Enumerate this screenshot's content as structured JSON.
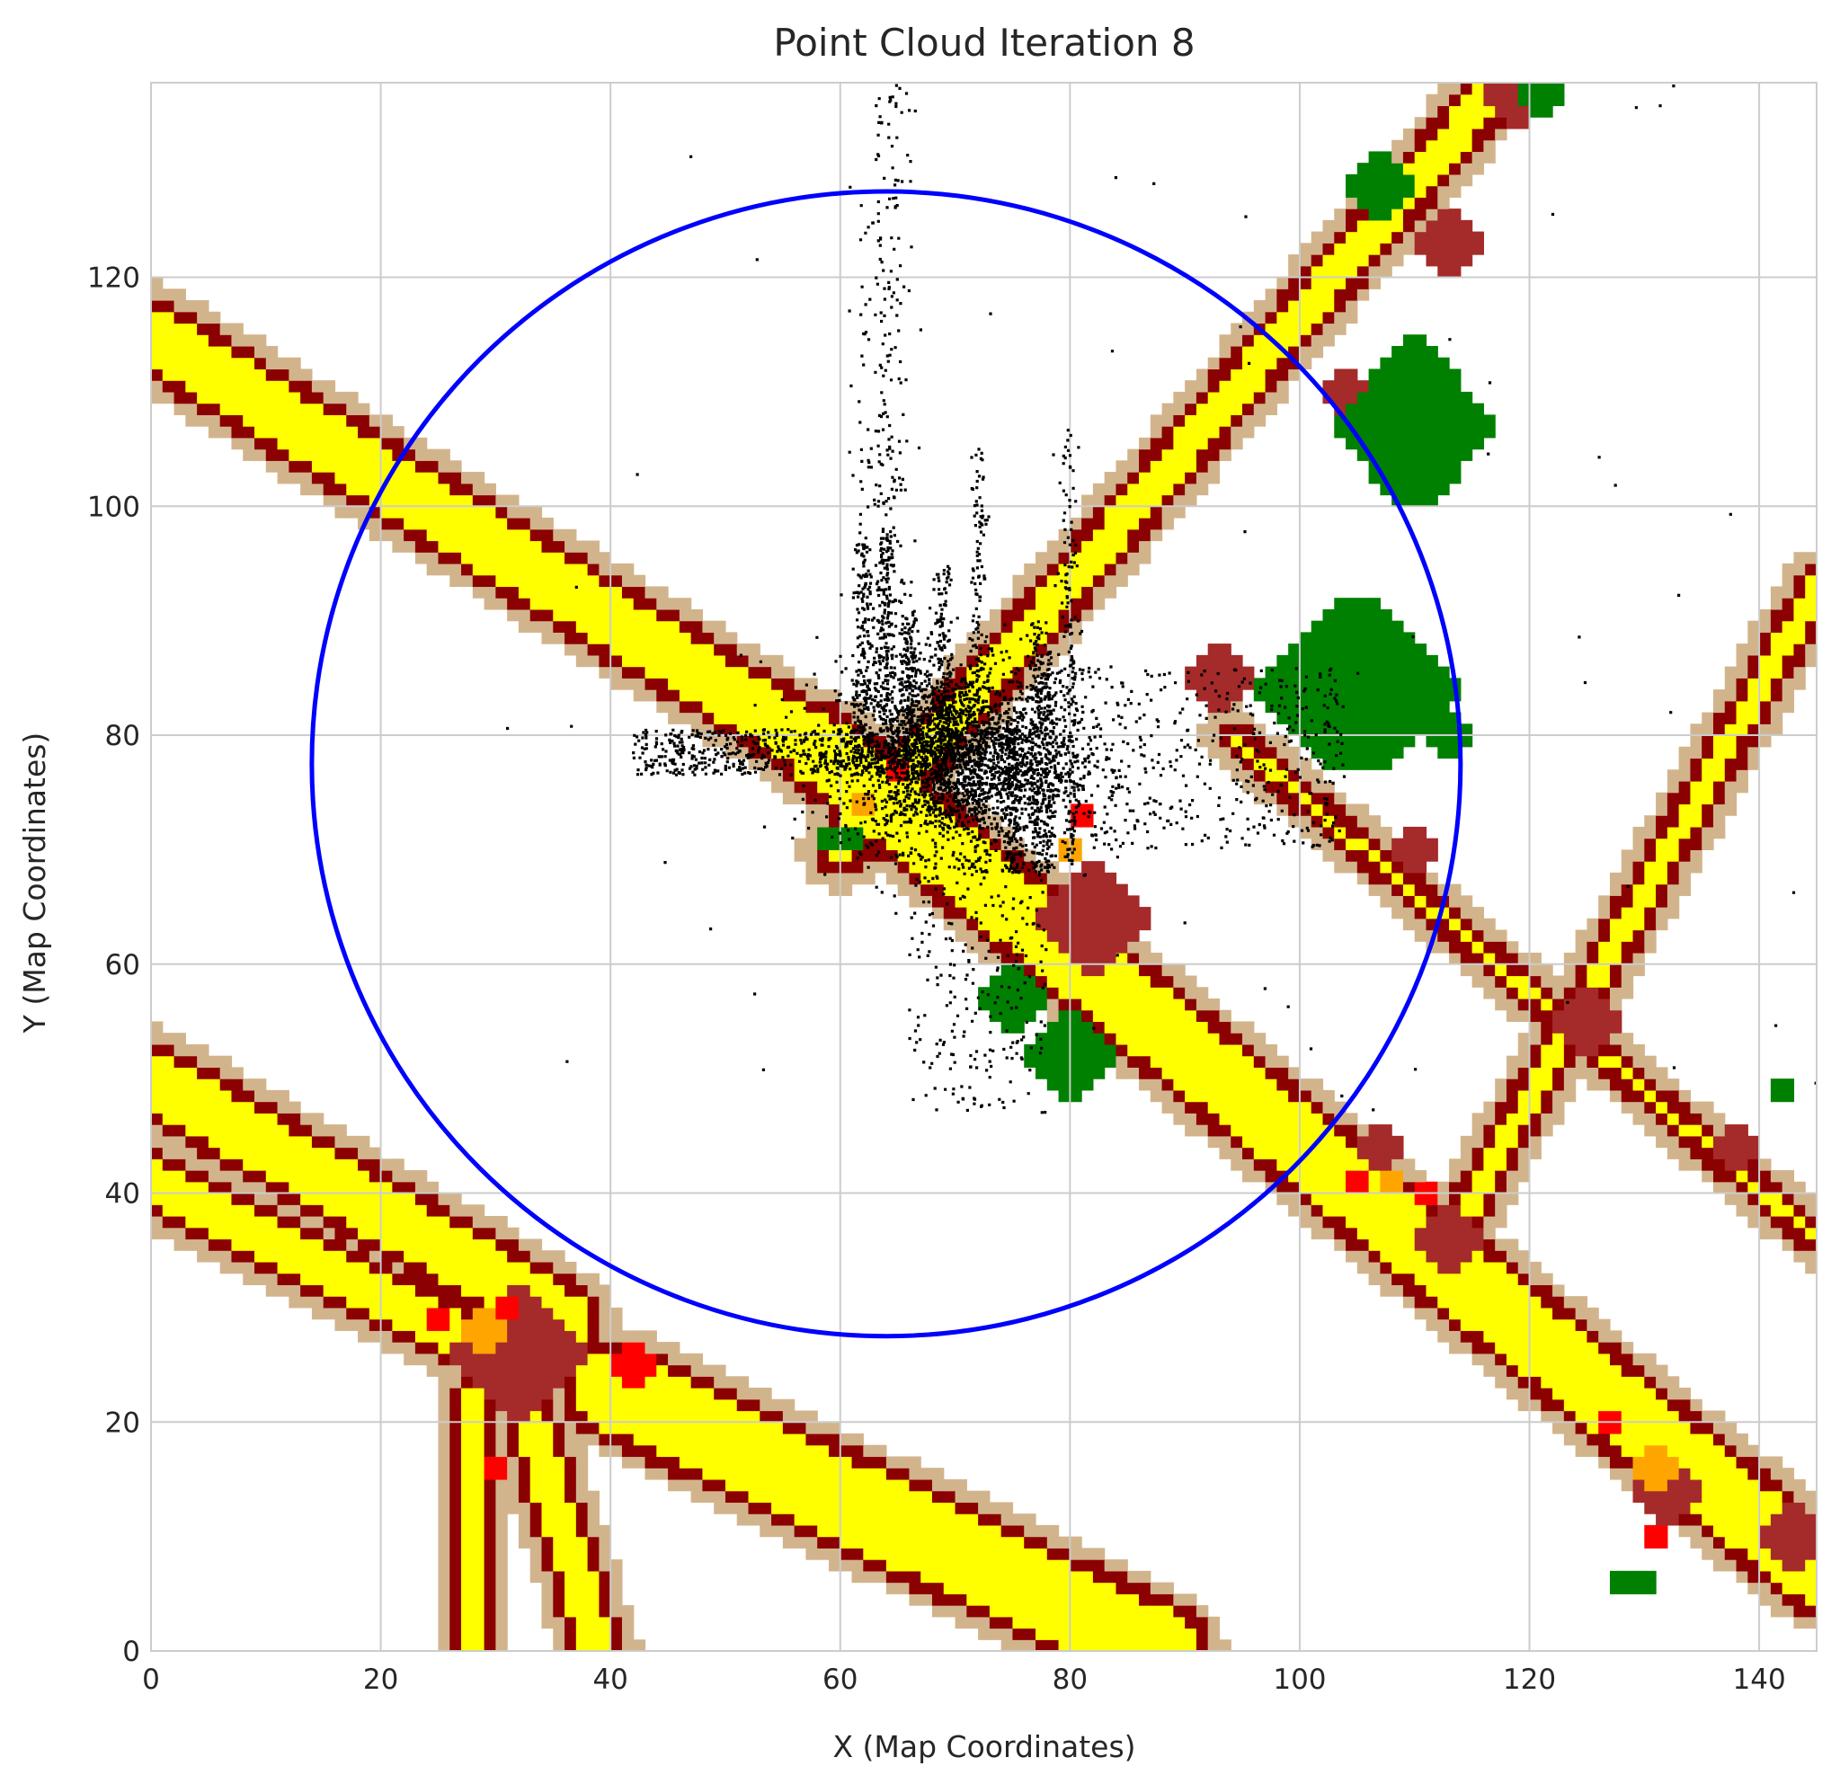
{
  "chart_data": {
    "type": "scatter",
    "title": "Point Cloud Iteration 8",
    "xlabel": "X (Map Coordinates)",
    "ylabel": "Y (Map Coordinates)",
    "xlim": [
      0,
      145
    ],
    "ylim": [
      0,
      137
    ],
    "xticks": [
      "0",
      "20",
      "40",
      "60",
      "80",
      "100",
      "120",
      "140"
    ],
    "yticks": [
      "0",
      "20",
      "40",
      "60",
      "80",
      "100",
      "120"
    ],
    "grid": true,
    "background_map": {
      "cell_size": 1,
      "colors": {
        "road": "#ffff00",
        "road_edge": "#8b0000",
        "intersection": "#a52a2a",
        "sidewalk": "#d2b48c",
        "vegetation": "#008000",
        "marker_red": "#ff0000",
        "marker_orange": "#ffa500"
      },
      "road_segments": [
        {
          "from": [
            0,
            115
          ],
          "to": [
            58,
            79
          ],
          "width": 6
        },
        {
          "from": [
            58,
            79
          ],
          "to": [
            145,
            7
          ],
          "width": 7
        },
        {
          "from": [
            0,
            50
          ],
          "to": [
            36,
            29
          ],
          "width": 6
        },
        {
          "from": [
            0,
            41
          ],
          "to": [
            30,
            26
          ],
          "width": 5
        },
        {
          "from": [
            40,
            23
          ],
          "to": [
            88,
            0
          ],
          "width": 8
        },
        {
          "from": [
            28,
            22
          ],
          "to": [
            28,
            0
          ],
          "width": 3
        },
        {
          "from": [
            33,
            20
          ],
          "to": [
            39,
            0
          ],
          "width": 4
        },
        {
          "from": [
            60,
            70
          ],
          "to": [
            120,
            140
          ],
          "width": 4
        },
        {
          "from": [
            94,
            80
          ],
          "to": [
            145,
            36
          ],
          "width": 2
        },
        {
          "from": [
            112,
            34
          ],
          "to": [
            145,
            93
          ],
          "width": 3
        }
      ],
      "intersections": [
        {
          "center": [
            32,
            26
          ],
          "radius": 5
        },
        {
          "center": [
            82,
            64
          ],
          "radius": 4
        },
        {
          "center": [
            93,
            85
          ],
          "radius": 3
        },
        {
          "center": [
            107,
            44
          ],
          "radius": 2
        },
        {
          "center": [
            113,
            36
          ],
          "radius": 3
        },
        {
          "center": [
            125,
            55
          ],
          "radius": 3
        },
        {
          "center": [
            132,
            14
          ],
          "radius": 3
        },
        {
          "center": [
            143,
            10
          ],
          "radius": 3
        },
        {
          "center": [
            113,
            123
          ],
          "radius": 3
        },
        {
          "center": [
            119,
            136
          ],
          "radius": 3
        },
        {
          "center": [
            104,
            110
          ],
          "radius": 2
        },
        {
          "center": [
            138,
            44
          ],
          "radius": 2
        },
        {
          "center": [
            110,
            70
          ],
          "radius": 2
        }
      ],
      "vegetation_patches": [
        {
          "center": [
            110,
            107
          ],
          "rx": 6,
          "ry": 6
        },
        {
          "center": [
            105,
            84
          ],
          "rx": 8,
          "ry": 6
        },
        {
          "center": [
            80,
            52
          ],
          "rx": 4,
          "ry": 3
        },
        {
          "center": [
            75,
            57
          ],
          "rx": 3,
          "ry": 2
        },
        {
          "center": [
            107,
            128
          ],
          "rx": 3,
          "ry": 2
        },
        {
          "center": [
            121,
            136
          ],
          "rx": 2,
          "ry": 2
        },
        {
          "center": [
            113,
            80
          ],
          "rx": 2,
          "ry": 2
        },
        {
          "center": [
            60,
            71
          ],
          "rx": 2,
          "ry": 1
        },
        {
          "center": [
            129,
            6
          ],
          "rx": 3,
          "ry": 1
        },
        {
          "center": [
            142,
            49
          ],
          "rx": 1,
          "ry": 1
        }
      ],
      "red_markers": [
        {
          "center": [
            25,
            29
          ],
          "radius": 1.5
        },
        {
          "center": [
            42,
            25
          ],
          "radius": 2
        },
        {
          "center": [
            31,
            30
          ],
          "radius": 1.5
        },
        {
          "center": [
            30,
            16
          ],
          "radius": 1
        },
        {
          "center": [
            105,
            41
          ],
          "radius": 1.5
        },
        {
          "center": [
            111,
            40
          ],
          "radius": 1.5
        },
        {
          "center": [
            127,
            20
          ],
          "radius": 1.5
        },
        {
          "center": [
            131,
            10
          ],
          "radius": 1
        },
        {
          "center": [
            81,
            73
          ],
          "radius": 1
        },
        {
          "center": [
            65,
            77
          ],
          "radius": 1
        }
      ],
      "orange_markers": [
        {
          "center": [
            29,
            28
          ],
          "radius": 2
        },
        {
          "center": [
            108,
            41
          ],
          "radius": 1.5
        },
        {
          "center": [
            131,
            16
          ],
          "radius": 2
        },
        {
          "center": [
            62,
            74
          ],
          "radius": 1.5
        },
        {
          "center": [
            80,
            70
          ],
          "radius": 1
        }
      ]
    },
    "circle": {
      "center": [
        64,
        77.5
      ],
      "radius": 50,
      "color": "#0000ff"
    },
    "point_cloud": {
      "color": "#000000",
      "dense_center": [
        70,
        78
      ],
      "x_range": [
        30,
        145
      ],
      "y_range": [
        47,
        137
      ],
      "streak_columns": [
        62,
        64,
        66,
        69,
        72,
        75,
        77,
        78,
        80
      ]
    }
  }
}
